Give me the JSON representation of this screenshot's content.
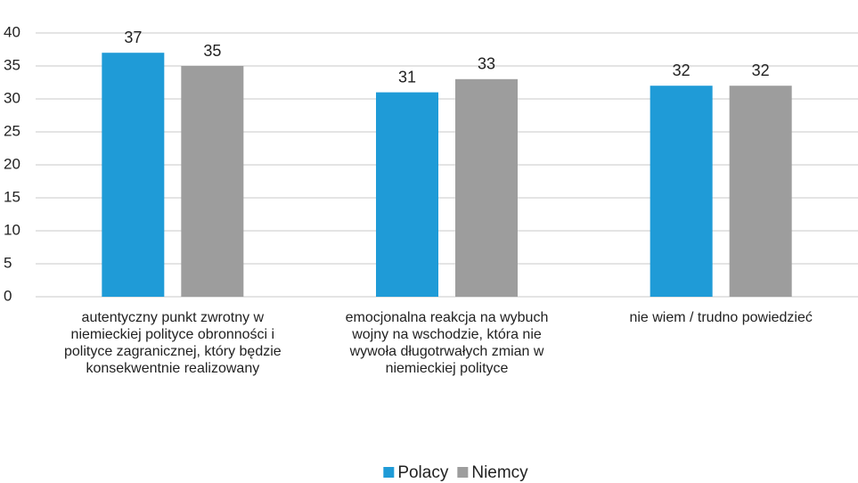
{
  "chart_data": {
    "type": "bar",
    "categories": [
      "autentyczny punkt zwrotny w niemieckiej polityce obronności i polityce zagranicznej, który będzie konsekwentnie realizowany",
      "emocjonalna reakcja na wybuch wojny na wschodzie, która nie wywoła długotrwałych zmian w niemieckiej polityce",
      "nie wiem / trudno powiedzieć"
    ],
    "series": [
      {
        "name": "Polacy",
        "color": "#1f9bd7",
        "values": [
          37,
          31,
          32
        ]
      },
      {
        "name": "Niemcy",
        "color": "#9d9d9d",
        "values": [
          35,
          33,
          32
        ]
      }
    ],
    "ylim": [
      0,
      40
    ],
    "yticks": [
      0,
      5,
      10,
      15,
      20,
      25,
      30,
      35,
      40
    ],
    "grid": true,
    "legend": "bottom"
  }
}
